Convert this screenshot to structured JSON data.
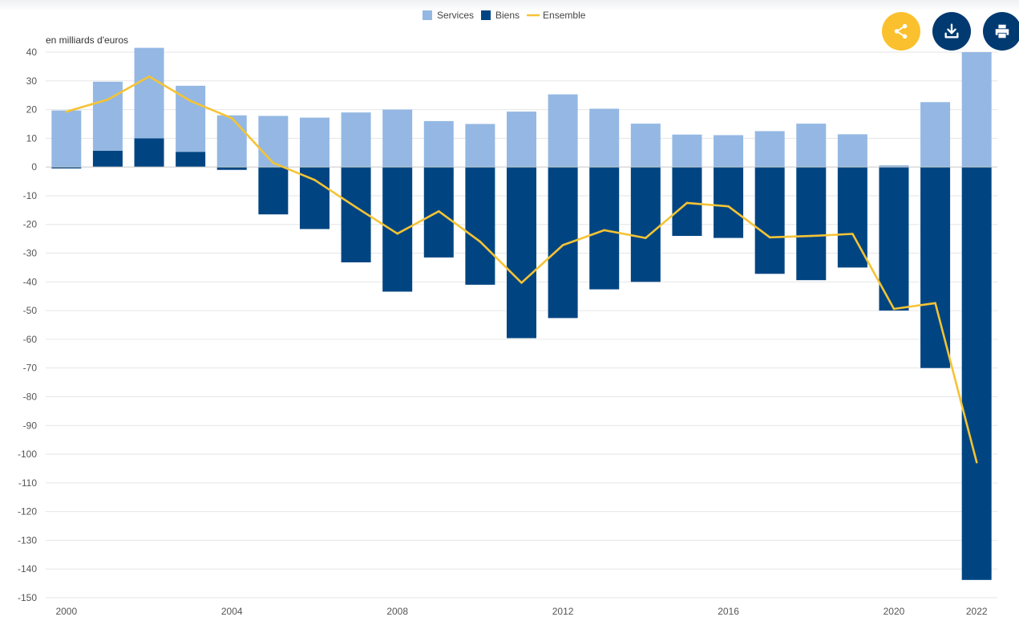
{
  "chart_data": {
    "type": "bar",
    "stacked": true,
    "ylabel": "en milliards d'euros",
    "ylim": [
      -150,
      40
    ],
    "yticks": [
      40,
      30,
      20,
      10,
      0,
      -10,
      -20,
      -30,
      -40,
      -50,
      -60,
      -70,
      -80,
      -90,
      -100,
      -110,
      -120,
      -130,
      -140,
      -150
    ],
    "x": [
      2000,
      2001,
      2002,
      2003,
      2004,
      2005,
      2006,
      2007,
      2008,
      2009,
      2010,
      2011,
      2012,
      2013,
      2014,
      2015,
      2016,
      2017,
      2018,
      2019,
      2020,
      2021,
      2022
    ],
    "x_tick_labels": [
      "2000",
      "2004",
      "2008",
      "2012",
      "2016",
      "2020",
      "2022"
    ],
    "grid": true,
    "legend_position": "top",
    "series": [
      {
        "name": "Services",
        "type": "bar",
        "color": "#94b8e3",
        "values": [
          19.7,
          24.0,
          31.5,
          23.0,
          18.0,
          17.8,
          17.2,
          19.0,
          20.0,
          16.0,
          15.0,
          19.3,
          25.3,
          20.3,
          15.1,
          11.3,
          11.1,
          12.5,
          15.1,
          11.4,
          0.6,
          22.6,
          40.0
        ]
      },
      {
        "name": "Biens",
        "type": "bar",
        "color": "#004582",
        "values": [
          -0.5,
          5.7,
          10.0,
          5.3,
          -1.0,
          -16.5,
          -21.6,
          -33.2,
          -43.4,
          -31.5,
          -41.0,
          -59.6,
          -52.6,
          -42.6,
          -40.0,
          -24.0,
          -24.7,
          -37.2,
          -39.4,
          -35.0,
          -50.0,
          -70.0,
          -143.8
        ]
      },
      {
        "name": "Ensemble",
        "type": "line",
        "color": "#f5c335",
        "values": [
          19.3,
          23.5,
          31.5,
          23.0,
          17.0,
          1.4,
          -4.5,
          -14.0,
          -23.2,
          -15.4,
          -26.0,
          -40.3,
          -27.2,
          -22.0,
          -24.7,
          -12.5,
          -13.7,
          -24.5,
          -24.0,
          -23.3,
          -49.4,
          -47.4,
          -102.8
        ]
      }
    ]
  },
  "toolbar": {
    "share_icon": "share-icon",
    "download_icon": "download-icon",
    "print_icon": "print-icon",
    "share_color": "#fbc02d",
    "button_color": "#003a70"
  }
}
